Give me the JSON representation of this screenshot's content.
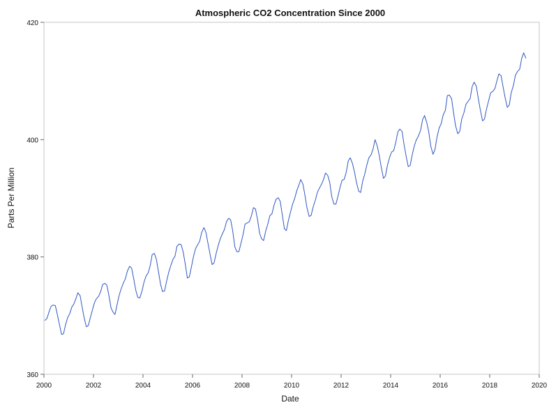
{
  "chart_data": {
    "type": "line",
    "title": "Atmospheric CO2 Concentration Since 2000",
    "xlabel": "Date",
    "ylabel": "Parts Per Million",
    "xlim": [
      2000,
      2020
    ],
    "ylim": [
      360,
      420
    ],
    "x_ticks": [
      "2000",
      "2002",
      "2004",
      "2006",
      "2008",
      "2010",
      "2012",
      "2014",
      "2016",
      "2018",
      "2020"
    ],
    "y_ticks": [
      "360",
      "380",
      "400",
      "420"
    ],
    "grid": false,
    "line_color": "#2e56c2",
    "series": [
      {
        "x": [
          2000.04,
          2000.12,
          2000.21,
          2000.29,
          2000.37,
          2000.46,
          2000.54,
          2000.62,
          2000.71,
          2000.79,
          2000.87,
          2000.96,
          2001.04,
          2001.12,
          2001.21,
          2001.29,
          2001.37,
          2001.46,
          2001.54,
          2001.62,
          2001.71,
          2001.79,
          2001.87,
          2001.96,
          2002.04,
          2002.12,
          2002.21,
          2002.29,
          2002.37,
          2002.46,
          2002.54,
          2002.62,
          2002.71,
          2002.79,
          2002.87,
          2002.96,
          2003.04,
          2003.12,
          2003.21,
          2003.29,
          2003.37,
          2003.46,
          2003.54,
          2003.62,
          2003.71,
          2003.79,
          2003.87,
          2003.96,
          2004.04,
          2004.12,
          2004.21,
          2004.29,
          2004.37,
          2004.46,
          2004.54,
          2004.62,
          2004.71,
          2004.79,
          2004.87,
          2004.96,
          2005.04,
          2005.12,
          2005.21,
          2005.29,
          2005.37,
          2005.46,
          2005.54,
          2005.62,
          2005.71,
          2005.79,
          2005.87,
          2005.96,
          2006.04,
          2006.12,
          2006.21,
          2006.29,
          2006.37,
          2006.46,
          2006.54,
          2006.62,
          2006.71,
          2006.79,
          2006.87,
          2006.96,
          2007.04,
          2007.12,
          2007.21,
          2007.29,
          2007.37,
          2007.46,
          2007.54,
          2007.62,
          2007.71,
          2007.79,
          2007.87,
          2007.96,
          2008.04,
          2008.12,
          2008.21,
          2008.29,
          2008.37,
          2008.46,
          2008.54,
          2008.62,
          2008.71,
          2008.79,
          2008.87,
          2008.96,
          2009.04,
          2009.12,
          2009.21,
          2009.29,
          2009.37,
          2009.46,
          2009.54,
          2009.62,
          2009.71,
          2009.79,
          2009.87,
          2009.96,
          2010.04,
          2010.12,
          2010.21,
          2010.29,
          2010.37,
          2010.46,
          2010.54,
          2010.62,
          2010.71,
          2010.79,
          2010.87,
          2010.96,
          2011.04,
          2011.12,
          2011.21,
          2011.29,
          2011.37,
          2011.46,
          2011.54,
          2011.62,
          2011.71,
          2011.79,
          2011.87,
          2011.96,
          2012.04,
          2012.12,
          2012.21,
          2012.29,
          2012.37,
          2012.46,
          2012.54,
          2012.62,
          2012.71,
          2012.79,
          2012.87,
          2012.96,
          2013.04,
          2013.12,
          2013.21,
          2013.29,
          2013.37,
          2013.46,
          2013.54,
          2013.62,
          2013.71,
          2013.79,
          2013.87,
          2013.96,
          2014.04,
          2014.12,
          2014.21,
          2014.29,
          2014.37,
          2014.46,
          2014.54,
          2014.62,
          2014.71,
          2014.79,
          2014.87,
          2014.96,
          2015.04,
          2015.12,
          2015.21,
          2015.29,
          2015.37,
          2015.46,
          2015.54,
          2015.62,
          2015.71,
          2015.79,
          2015.87,
          2015.96,
          2016.04,
          2016.12,
          2016.21,
          2016.29,
          2016.37,
          2016.46,
          2016.54,
          2016.62,
          2016.71,
          2016.79,
          2016.87,
          2016.96,
          2017.04,
          2017.12,
          2017.21,
          2017.29,
          2017.37,
          2017.46,
          2017.54,
          2017.62,
          2017.71,
          2017.79,
          2017.87,
          2017.96,
          2018.04,
          2018.12,
          2018.21,
          2018.29,
          2018.37,
          2018.46,
          2018.54,
          2018.62,
          2018.71,
          2018.79,
          2018.87,
          2018.96,
          2019.04,
          2019.12,
          2019.21,
          2019.29,
          2019.37,
          2019.46
        ],
        "values": [
          369.2,
          369.5,
          370.7,
          371.6,
          371.8,
          371.7,
          370.2,
          368.6,
          366.8,
          366.9,
          368.4,
          369.7,
          370.3,
          371.4,
          372.0,
          372.9,
          373.9,
          373.4,
          371.5,
          369.7,
          368.1,
          368.3,
          369.6,
          371.0,
          372.2,
          372.9,
          373.3,
          374.1,
          375.3,
          375.5,
          375.2,
          373.5,
          371.3,
          370.6,
          370.2,
          372.0,
          373.5,
          374.6,
          375.6,
          376.3,
          377.6,
          378.4,
          378.1,
          376.4,
          374.3,
          373.1,
          373.0,
          374.2,
          375.7,
          376.7,
          377.3,
          378.5,
          380.4,
          380.6,
          379.6,
          377.6,
          375.3,
          374.1,
          374.2,
          376.0,
          377.4,
          378.5,
          379.6,
          380.1,
          381.8,
          382.2,
          382.1,
          380.9,
          378.7,
          376.4,
          376.6,
          378.4,
          380.1,
          381.4,
          382.1,
          382.7,
          384.2,
          385.0,
          384.2,
          382.4,
          380.4,
          378.7,
          379.0,
          380.7,
          382.0,
          383.1,
          384.0,
          384.7,
          386.0,
          386.6,
          386.3,
          384.5,
          381.7,
          380.9,
          380.9,
          382.4,
          383.8,
          385.6,
          385.8,
          386.0,
          386.9,
          388.4,
          388.2,
          386.5,
          384.0,
          383.1,
          382.8,
          384.5,
          385.6,
          387.0,
          387.4,
          388.8,
          389.8,
          390.1,
          389.5,
          387.3,
          384.8,
          384.5,
          386.2,
          387.7,
          389.0,
          389.9,
          391.3,
          392.2,
          393.2,
          392.4,
          390.5,
          388.4,
          386.9,
          387.1,
          388.5,
          389.7,
          391.0,
          391.7,
          392.4,
          393.2,
          394.3,
          393.9,
          392.7,
          390.3,
          389.0,
          389.0,
          390.3,
          391.9,
          393.1,
          393.2,
          394.5,
          396.4,
          396.9,
          395.9,
          394.5,
          392.7,
          391.2,
          391.0,
          392.9,
          394.2,
          395.7,
          396.9,
          397.4,
          398.4,
          400.0,
          398.9,
          397.3,
          395.3,
          393.4,
          393.8,
          395.6,
          397.0,
          397.9,
          398.1,
          399.6,
          401.3,
          401.8,
          401.4,
          399.2,
          397.3,
          395.4,
          395.6,
          397.4,
          399.0,
          400.0,
          400.6,
          401.6,
          403.4,
          404.1,
          402.9,
          401.3,
          398.9,
          397.5,
          398.3,
          400.4,
          402.0,
          402.7,
          404.2,
          405.0,
          407.5,
          407.6,
          407.0,
          404.6,
          402.4,
          401.0,
          401.4,
          403.5,
          404.6,
          406.0,
          406.5,
          407.0,
          409.0,
          409.8,
          409.1,
          407.0,
          405.1,
          403.2,
          403.5,
          405.2,
          406.7,
          408.0,
          408.2,
          408.7,
          410.0,
          411.2,
          410.9,
          409.0,
          407.2,
          405.5,
          405.9,
          408.0,
          409.3,
          411.0,
          411.6,
          412.0,
          413.8,
          414.8,
          413.9
        ]
      }
    ]
  }
}
